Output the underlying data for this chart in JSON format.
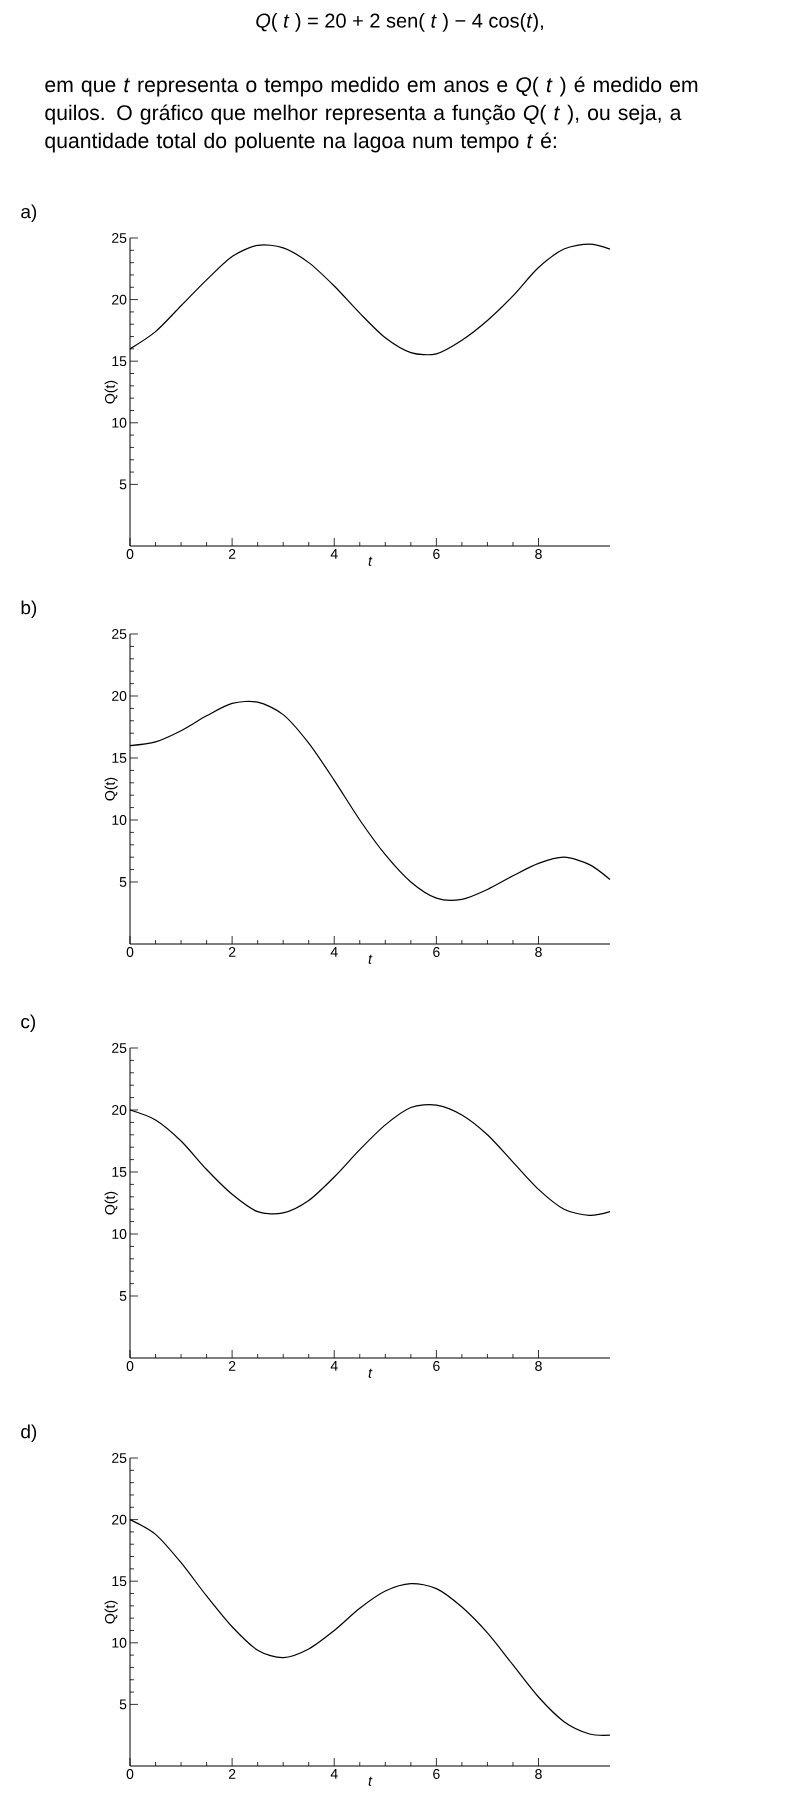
{
  "chart_data": [
    {
      "type": "line",
      "title": "a)",
      "xlabel": "t",
      "ylabel": "Q(t)",
      "annotations": [
        "*Q*( *t* ) = 20 + 2 sen( *t* ) − 4 cos(*t*),",
        "em que *t* representa o tempo medido em anos e *Q*( *t* ) é medido em quilos. O gráfico que melhor representa a função *Q*( *t* ), ou seja, a quantidade total do poluente na lagoa num tempo *t* é:"
      ],
      "xlim": [
        0,
        9.4
      ],
      "ylim": [
        0,
        25
      ],
      "xticks": [
        0,
        2,
        4,
        6,
        8
      ],
      "yticks": [
        5,
        10,
        15,
        20,
        25
      ],
      "color": "#000000",
      "marker": "none",
      "line_style": "solid",
      "x": [
        0,
        0.5,
        1,
        1.5,
        2,
        2.5,
        3,
        3.5,
        4,
        4.5,
        5,
        5.5,
        6,
        6.5,
        7,
        7.5,
        8,
        8.5,
        9,
        9.4
      ],
      "values": [
        16,
        17.4,
        19.5,
        21.6,
        23.5,
        24.4,
        24.2,
        23.0,
        21.1,
        18.9,
        16.9,
        15.7,
        15.6,
        16.7,
        18.3,
        20.3,
        22.6,
        24.1,
        24.5,
        24.1
      ]
    },
    {
      "type": "line",
      "title": "b)",
      "xlabel": "t",
      "ylabel": "Q(t)",
      "xlim": [
        0,
        9.4
      ],
      "ylim": [
        0,
        25
      ],
      "xticks": [
        0,
        2,
        4,
        6,
        8
      ],
      "yticks": [
        5,
        10,
        15,
        20,
        25
      ],
      "color": "#000000",
      "marker": "none",
      "line_style": "solid",
      "x": [
        0,
        0.5,
        1,
        1.5,
        2,
        2.5,
        3,
        3.5,
        4,
        4.5,
        5,
        5.5,
        6,
        6.5,
        7,
        7.5,
        8,
        8.5,
        9,
        9.4
      ],
      "values": [
        16,
        16.3,
        17.2,
        18.4,
        19.4,
        19.5,
        18.5,
        16.2,
        13.2,
        10.0,
        7.2,
        5.0,
        3.7,
        3.6,
        4.4,
        5.5,
        6.5,
        7.0,
        6.4,
        5.2
      ]
    },
    {
      "type": "line",
      "title": "c)",
      "xlabel": "t",
      "ylabel": "Q(t)",
      "xlim": [
        0,
        9.4
      ],
      "ylim": [
        0,
        25
      ],
      "xticks": [
        0,
        2,
        4,
        6,
        8
      ],
      "yticks": [
        5,
        10,
        15,
        20,
        25
      ],
      "color": "#000000",
      "marker": "none",
      "line_style": "solid",
      "x": [
        0,
        0.5,
        1,
        1.5,
        2,
        2.5,
        3,
        3.5,
        4,
        4.5,
        5,
        5.5,
        6,
        6.5,
        7,
        7.5,
        8,
        8.5,
        9,
        9.4
      ],
      "values": [
        20,
        19.2,
        17.5,
        15.2,
        13.2,
        11.8,
        11.7,
        12.7,
        14.6,
        16.8,
        18.8,
        20.2,
        20.4,
        19.6,
        18.0,
        15.8,
        13.6,
        12.0,
        11.5,
        11.8
      ]
    },
    {
      "type": "line",
      "title": "d)",
      "xlabel": "t",
      "ylabel": "Q(t)",
      "xlim": [
        0,
        9.4
      ],
      "ylim": [
        0,
        25
      ],
      "xticks": [
        0,
        2,
        4,
        6,
        8
      ],
      "yticks": [
        5,
        10,
        15,
        20,
        25
      ],
      "color": "#000000",
      "marker": "none",
      "line_style": "solid",
      "x": [
        0,
        0.5,
        1,
        1.5,
        2,
        2.5,
        3,
        3.5,
        4,
        4.5,
        5,
        5.5,
        6,
        6.5,
        7,
        7.5,
        8,
        8.5,
        9,
        9.4
      ],
      "values": [
        20,
        18.8,
        16.5,
        13.8,
        11.3,
        9.4,
        8.8,
        9.5,
        11.0,
        12.8,
        14.2,
        14.8,
        14.4,
        12.9,
        10.8,
        8.2,
        5.6,
        3.6,
        2.6,
        2.5
      ]
    }
  ]
}
